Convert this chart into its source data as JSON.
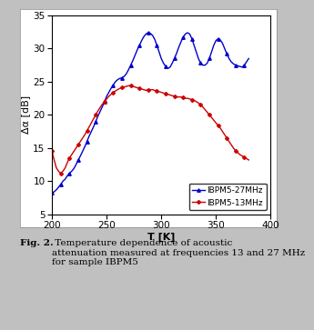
{
  "xlabel": "T [K]",
  "ylabel": "Δα [dB]",
  "xlim": [
    200,
    400
  ],
  "ylim": [
    5,
    35
  ],
  "xticks": [
    200,
    250,
    300,
    350,
    400
  ],
  "yticks": [
    5,
    10,
    15,
    20,
    25,
    30,
    35
  ],
  "background_color": "#c0c0c0",
  "plot_bg_color": "#ffffff",
  "legend_labels": [
    "IBPM5-27MHz",
    "IBPM5-13MHz"
  ],
  "legend_colors": [
    "#0000cc",
    "#cc0000"
  ],
  "caption_bold": "Fig. 2.",
  "caption_normal": "  Temperature dependence of acoustic attenuation measured at frequencies 13 and 27 MHz for sample IBPM5",
  "line_27MHz": {
    "color": "#0000cc",
    "marker": "^",
    "markersize": 2.5,
    "linewidth": 1.0,
    "x": [
      200,
      202,
      204,
      206,
      208,
      210,
      212,
      214,
      216,
      218,
      220,
      222,
      224,
      226,
      228,
      230,
      232,
      234,
      236,
      238,
      240,
      242,
      244,
      246,
      248,
      250,
      252,
      254,
      256,
      258,
      260,
      262,
      264,
      266,
      268,
      270,
      272,
      274,
      276,
      278,
      280,
      282,
      284,
      286,
      288,
      290,
      292,
      294,
      296,
      298,
      300,
      302,
      304,
      306,
      308,
      310,
      312,
      314,
      316,
      318,
      320,
      322,
      324,
      326,
      328,
      330,
      332,
      334,
      336,
      338,
      340,
      342,
      344,
      346,
      348,
      350,
      352,
      354,
      356,
      358,
      360,
      362,
      364,
      366,
      368,
      370,
      372,
      374,
      376,
      378,
      380
    ],
    "y": [
      8.2,
      8.4,
      8.7,
      9.1,
      9.5,
      10.0,
      10.3,
      10.8,
      11.2,
      11.5,
      11.9,
      12.5,
      13.2,
      13.8,
      14.5,
      15.2,
      16.0,
      16.8,
      17.5,
      18.2,
      19.0,
      19.8,
      20.5,
      21.2,
      22.0,
      22.8,
      23.4,
      24.0,
      24.5,
      25.0,
      25.3,
      25.5,
      25.6,
      25.8,
      26.2,
      26.8,
      27.5,
      28.2,
      29.0,
      29.8,
      30.5,
      31.2,
      31.8,
      32.2,
      32.4,
      32.3,
      32.0,
      31.4,
      30.5,
      29.5,
      28.5,
      27.8,
      27.3,
      27.0,
      27.2,
      27.8,
      28.5,
      29.3,
      30.2,
      31.0,
      31.7,
      32.2,
      32.4,
      32.2,
      31.5,
      30.5,
      29.5,
      28.5,
      27.8,
      27.5,
      27.5,
      27.8,
      28.5,
      29.5,
      30.5,
      31.2,
      31.5,
      31.3,
      30.8,
      30.0,
      29.2,
      28.5,
      28.0,
      27.7,
      27.5,
      27.4,
      27.3,
      27.2,
      27.5,
      28.0,
      28.5
    ]
  },
  "line_13MHz": {
    "color": "#cc0000",
    "marker": "P",
    "markersize": 2.5,
    "linewidth": 1.0,
    "x": [
      200,
      202,
      204,
      206,
      208,
      210,
      212,
      214,
      216,
      218,
      220,
      222,
      224,
      226,
      228,
      230,
      232,
      234,
      236,
      238,
      240,
      242,
      244,
      246,
      248,
      250,
      252,
      254,
      256,
      258,
      260,
      262,
      264,
      266,
      268,
      270,
      272,
      274,
      276,
      278,
      280,
      282,
      284,
      286,
      288,
      290,
      292,
      294,
      296,
      298,
      300,
      302,
      304,
      306,
      308,
      310,
      312,
      314,
      316,
      318,
      320,
      322,
      324,
      326,
      328,
      330,
      332,
      334,
      336,
      338,
      340,
      342,
      344,
      346,
      348,
      350,
      352,
      354,
      356,
      358,
      360,
      362,
      364,
      366,
      368,
      370,
      372,
      374,
      376,
      378,
      380
    ],
    "y": [
      14.5,
      13.2,
      12.0,
      11.5,
      11.2,
      11.5,
      12.0,
      12.8,
      13.5,
      14.0,
      14.5,
      15.0,
      15.5,
      16.0,
      16.5,
      17.0,
      17.6,
      18.2,
      18.8,
      19.4,
      20.0,
      20.6,
      21.1,
      21.6,
      22.0,
      22.4,
      22.8,
      23.1,
      23.4,
      23.6,
      23.8,
      24.0,
      24.1,
      24.2,
      24.3,
      24.4,
      24.4,
      24.3,
      24.2,
      24.1,
      24.0,
      23.9,
      23.8,
      23.7,
      23.8,
      23.8,
      23.8,
      23.7,
      23.6,
      23.5,
      23.4,
      23.3,
      23.2,
      23.1,
      23.0,
      22.9,
      22.8,
      22.7,
      22.7,
      22.7,
      22.6,
      22.5,
      22.5,
      22.4,
      22.3,
      22.2,
      22.0,
      21.8,
      21.5,
      21.2,
      20.8,
      20.4,
      20.0,
      19.6,
      19.2,
      18.8,
      18.4,
      18.0,
      17.5,
      17.0,
      16.5,
      16.0,
      15.5,
      15.0,
      14.6,
      14.3,
      14.0,
      13.8,
      13.6,
      13.4,
      13.2
    ]
  }
}
